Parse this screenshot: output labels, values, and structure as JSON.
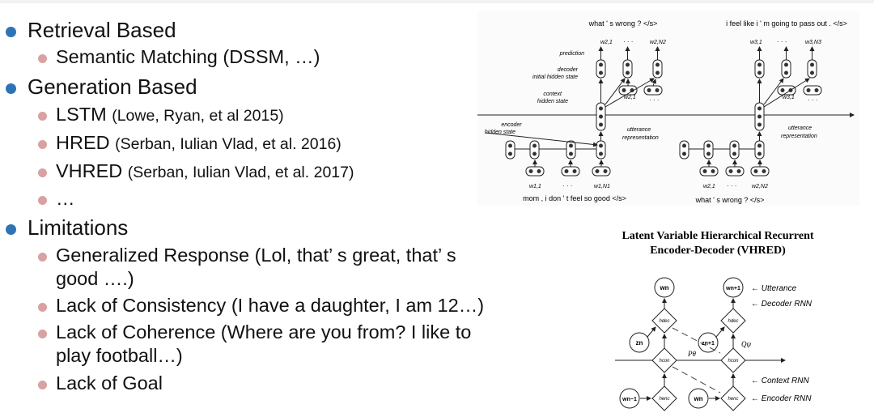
{
  "bullets": [
    {
      "level": 1,
      "text": "Retrieval Based",
      "small": ""
    },
    {
      "level": 2,
      "text": "Semantic Matching (DSSM, …)",
      "small": ""
    },
    {
      "level": 1,
      "text": "Generation Based",
      "small": ""
    },
    {
      "level": 2,
      "text": "LSTM ",
      "small": "(Lowe, Ryan, et al 2015)"
    },
    {
      "level": 2,
      "text": "HRED ",
      "small": "(Serban, Iulian Vlad, et al. 2016)"
    },
    {
      "level": 2,
      "text": "VHRED ",
      "small": "(Serban, Iulian Vlad, et al. 2017)"
    },
    {
      "level": 2,
      "text": "…",
      "small": ""
    },
    {
      "level": 1,
      "text": "Limitations",
      "small": ""
    },
    {
      "level": 2,
      "text": "Generalized Response (Lol, that’ s great, that’ s",
      "small": ""
    },
    {
      "level": 2,
      "text": "good ….)",
      "small": "",
      "cont": true
    },
    {
      "level": 2,
      "text": "Lack of Consistency (I have a daughter,  I am 12…)",
      "small": ""
    },
    {
      "level": 2,
      "text": "Lack of Coherence (Where are you from? I like to",
      "small": ""
    },
    {
      "level": 2,
      "text": "play football…)",
      "small": "",
      "cont": true
    },
    {
      "level": 2,
      "text": "Lack of Goal",
      "small": ""
    }
  ],
  "hred": {
    "utt_top_left": "what ' s wrong ? </s>",
    "utt_top_right": "i feel like i ' m going to pass out . </s>",
    "utt_bot_left": "mom , i don ' t feel so good </s>",
    "utt_bot_right": "what ' s wrong ? </s>",
    "prediction": "prediction",
    "decoder_init_1": "decoder",
    "decoder_init_2": "initial hidden state",
    "context_1": "context",
    "context_2": "hidden state",
    "encoder_1": "encoder",
    "encoder_2": "hidden state",
    "utter_rep_1": "utterance",
    "utter_rep_2": "representation",
    "dots": "· · ·",
    "w21": "w2,1",
    "w2n": "w2,N2",
    "w31": "w3,1",
    "w3n": "w3,N3",
    "w11": "w1,1",
    "w1n": "w1,N1"
  },
  "vhred": {
    "title_1": "Latent Variable Hierarchical Recurrent",
    "title_2": "Encoder-Decoder (VHRED)",
    "utterance": "← Utterance",
    "decoder_rnn": "← Decoder RNN",
    "context_rnn": "← Context RNN",
    "encoder_rnn": "← Encoder RNN",
    "wn": "wn",
    "wn1": "wn+1",
    "zn": "zn",
    "zn1": "zn+1",
    "wnm1": "wn−1",
    "wn2": "wn",
    "hdec": "hdec",
    "hcon": "hcon",
    "henc": "henc",
    "qpsi": "Qψ",
    "ptheta": "Pθ"
  }
}
